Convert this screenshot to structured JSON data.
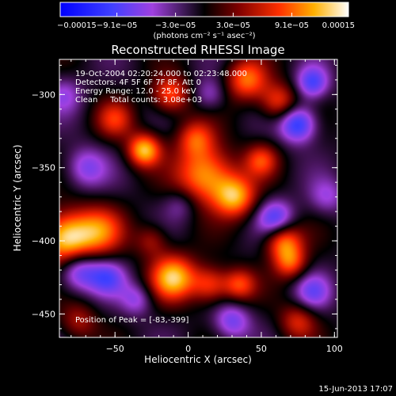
{
  "chart_data": {
    "type": "heatmap",
    "title": "Reconstructed RHESSI Image",
    "xlabel": "Heliocentric X (arcsec)",
    "ylabel": "Heliocentric Y (arcsec)",
    "xlim": [
      -88,
      102
    ],
    "ylim": [
      -466,
      -276
    ],
    "x_ticks": [
      -50,
      0,
      50,
      100
    ],
    "y_ticks": [
      -300,
      -350,
      -400,
      -450
    ],
    "x_tick_labels": [
      "−50",
      "0",
      "50",
      "100"
    ],
    "y_tick_labels": [
      "−300",
      "−350",
      "−400",
      "−450"
    ],
    "colorbar": {
      "range": [
        -0.00015,
        0.00015
      ],
      "tick_values": [
        -0.00015,
        -9.1e-05,
        -3e-05,
        3e-05,
        9.1e-05,
        0.00015
      ],
      "tick_labels": [
        "−0.00015",
        "−9.1e−05",
        "−3.0e−05",
        "3.0e−05",
        "9.1e−05",
        "0.00015"
      ],
      "units_label": "(photons cm⁻² s⁻¹ asec⁻²)"
    },
    "annotations": [
      "19-Oct-2004 02:20:24.000 to 02:23:48.000",
      "Detectors: 4F 5F 6F 7F 8F, Att 0",
      "Energy Range: 12.0 - 25.0 keV",
      "Clean     Total counts: 3.08e+03"
    ],
    "peak_label": "Position of Peak = [-83,-399]",
    "peak_position": [
      -83,
      -399
    ],
    "timestamp": "15-Jun-2013 17:07",
    "blobs": [
      {
        "x": -83,
        "y": -399,
        "v": 1.0,
        "s": 13
      },
      {
        "x": -60,
        "y": -393,
        "v": 0.55,
        "s": 12
      },
      {
        "x": -30,
        "y": -338,
        "v": 0.85,
        "s": 8
      },
      {
        "x": -12,
        "y": -300,
        "v": 0.6,
        "s": 9
      },
      {
        "x": -50,
        "y": -317,
        "v": 0.45,
        "s": 9
      },
      {
        "x": 12,
        "y": -355,
        "v": 0.8,
        "s": 14
      },
      {
        "x": 32,
        "y": -370,
        "v": 0.75,
        "s": 10
      },
      {
        "x": 50,
        "y": -345,
        "v": 0.5,
        "s": 8
      },
      {
        "x": 40,
        "y": -290,
        "v": 0.65,
        "s": 10
      },
      {
        "x": 62,
        "y": -305,
        "v": 0.55,
        "s": 9
      },
      {
        "x": -10,
        "y": -425,
        "v": 0.85,
        "s": 11
      },
      {
        "x": 15,
        "y": -430,
        "v": 0.55,
        "s": 9
      },
      {
        "x": 35,
        "y": -430,
        "v": 0.55,
        "s": 8
      },
      {
        "x": 65,
        "y": -400,
        "v": 0.7,
        "s": 9
      },
      {
        "x": 70,
        "y": -415,
        "v": 0.55,
        "s": 8
      },
      {
        "x": -25,
        "y": -400,
        "v": 0.35,
        "s": 8
      },
      {
        "x": -75,
        "y": -455,
        "v": 0.35,
        "s": 9
      },
      {
        "x": 75,
        "y": -455,
        "v": 0.45,
        "s": 9
      },
      {
        "x": 5,
        "y": -330,
        "v": 0.5,
        "s": 9
      },
      {
        "x": 75,
        "y": -320,
        "v": -0.7,
        "s": 9
      },
      {
        "x": 85,
        "y": -292,
        "v": -0.55,
        "s": 8
      },
      {
        "x": -75,
        "y": -420,
        "v": -0.6,
        "s": 10
      },
      {
        "x": -55,
        "y": -425,
        "v": -0.45,
        "s": 9
      },
      {
        "x": 60,
        "y": -385,
        "v": -0.55,
        "s": 9
      },
      {
        "x": -70,
        "y": -350,
        "v": -0.4,
        "s": 10
      },
      {
        "x": 30,
        "y": -455,
        "v": -0.45,
        "s": 9
      },
      {
        "x": -35,
        "y": -440,
        "v": -0.35,
        "s": 8
      },
      {
        "x": 85,
        "y": -435,
        "v": -0.4,
        "s": 9
      },
      {
        "x": 95,
        "y": -370,
        "v": -0.3,
        "s": 9
      },
      {
        "x": 15,
        "y": -300,
        "v": -0.3,
        "s": 8
      },
      {
        "x": -5,
        "y": -375,
        "v": -0.25,
        "s": 8
      },
      {
        "x": -85,
        "y": -300,
        "v": -0.3,
        "s": 9
      }
    ]
  }
}
